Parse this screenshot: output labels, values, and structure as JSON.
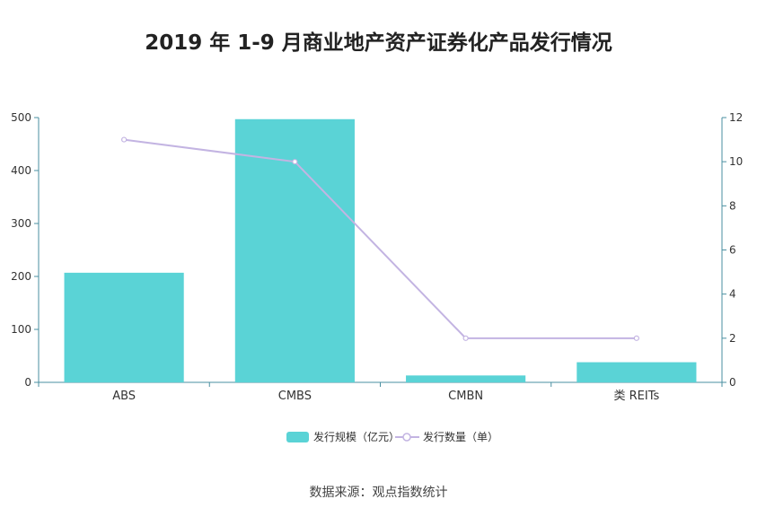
{
  "title": "2019 年 1-9 月商业地产资产证券化产品发行情况",
  "source": "数据来源：观点指数统计",
  "chart_data": {
    "type": "bar",
    "categories": [
      "ABS",
      "CMBS",
      "CMBN",
      "类 REITs"
    ],
    "series": [
      {
        "name": "发行规模（亿元）",
        "type": "bar",
        "axis": "left",
        "values": [
          207,
          497,
          13,
          38
        ],
        "color": "#5ad3d6"
      },
      {
        "name": "发行数量（单）",
        "type": "line",
        "axis": "right",
        "values": [
          11,
          10,
          2,
          2
        ],
        "color": "#c3b4e2"
      }
    ],
    "y_left": {
      "ylim": [
        0,
        500
      ],
      "ticks": [
        0,
        100,
        200,
        300,
        400,
        500
      ]
    },
    "y_right": {
      "ylim": [
        0,
        12
      ],
      "ticks": [
        0,
        2,
        4,
        6,
        8,
        10,
        12
      ]
    },
    "legend": "bottom"
  }
}
